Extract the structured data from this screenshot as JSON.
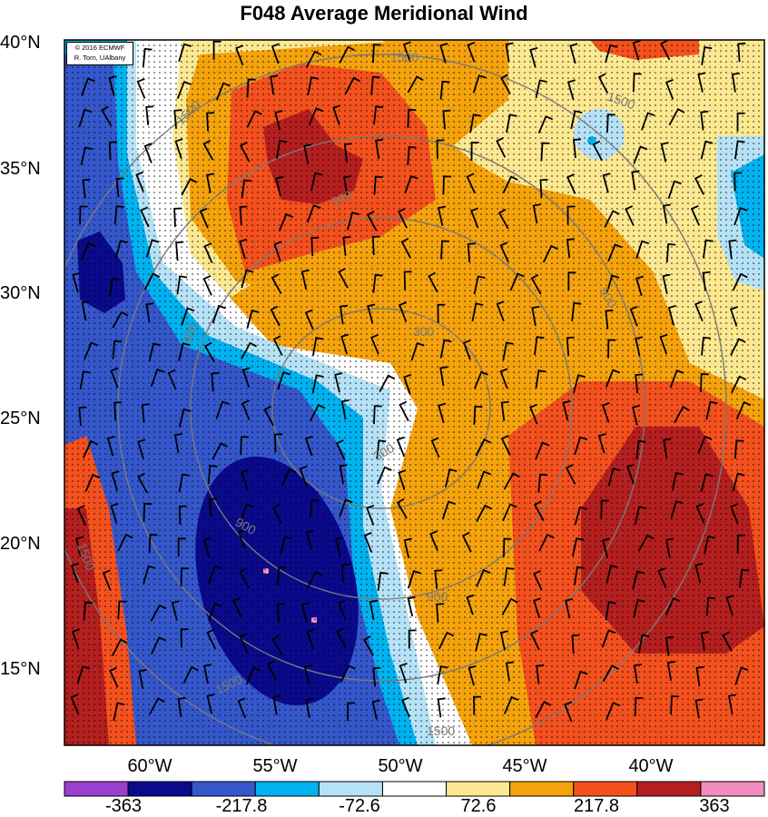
{
  "title": "F048 Average Meridional Wind",
  "credit": {
    "line1": "© 2016 ECMWF",
    "line2": "R. Torn, UAlbany"
  },
  "lat_labels": [
    "40°N",
    "35°N",
    "30°N",
    "25°N",
    "20°N",
    "15°N"
  ],
  "lon_labels": [
    "60°W",
    "55°W",
    "50°W",
    "45°W",
    "40°W"
  ],
  "colorbar": {
    "labels": [
      "-363",
      "-217.8",
      "-72.6",
      "72.6",
      "217.8",
      "363"
    ],
    "colors": [
      "#9b3fd0",
      "#0a0a8c",
      "#3557cc",
      "#00b2f0",
      "#b6e2f7",
      "#ffffff",
      "#fce891",
      "#f5a30c",
      "#f4511e",
      "#b51f1f",
      "#f08cc0"
    ]
  },
  "contour_labels": [
    "1500",
    "1500",
    "1500",
    "900",
    "900",
    "900",
    "900",
    "900",
    "300",
    "300",
    "1500",
    "1500",
    "1500"
  ],
  "colors": {
    "dark_red": "#b51f1f",
    "red": "#f4511e",
    "orange": "#f5a30c",
    "yellow": "#fce891",
    "white": "#ffffff",
    "light_blue": "#b6e2f7",
    "cyan": "#00b2f0",
    "blue": "#3557cc",
    "navy": "#0a0a8c",
    "purple": "#9b3fd0",
    "pink": "#f08cc0"
  }
}
